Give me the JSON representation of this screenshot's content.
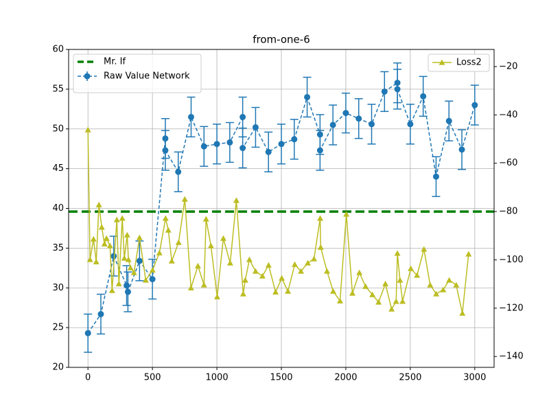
{
  "chart_data": {
    "type": "line",
    "title": "from-one-6",
    "xlim": [
      -150,
      3150
    ],
    "xticks": [
      0,
      500,
      1000,
      1500,
      2000,
      2500,
      3000
    ],
    "ylim": [
      20,
      60
    ],
    "yticks": [
      20,
      25,
      30,
      35,
      40,
      45,
      50,
      55,
      60
    ],
    "y2lim": [
      -144.5,
      -12.9
    ],
    "y2ticks": [
      {
        "value": -140,
        "label": "−140"
      },
      {
        "value": -120,
        "label": "−120"
      },
      {
        "value": -100,
        "label": "−100"
      },
      {
        "value": -80,
        "label": "−80"
      },
      {
        "value": -60,
        "label": "−60"
      },
      {
        "value": -40,
        "label": "−40"
      },
      {
        "value": -20,
        "label": "−20"
      }
    ],
    "grid": true,
    "hlines": [
      {
        "name": "Mr. If",
        "color": "#008000",
        "value": 39.6
      }
    ],
    "legend": "upper left",
    "legend2": "upper right",
    "series": [
      {
        "name": "Raw Value Network",
        "color": "#1f77b4",
        "x": [
          0,
          100,
          200,
          300,
          310,
          400,
          500,
          600,
          600,
          700,
          800,
          900,
          1000,
          1100,
          1200,
          1200,
          1300,
          1400,
          1500,
          1600,
          1700,
          1800,
          1800,
          1900,
          2000,
          2100,
          2200,
          2300,
          2400,
          2400,
          2500,
          2600,
          2700,
          2800,
          2900,
          3000
        ],
        "values": [
          24.3,
          26.7,
          34.0,
          30.3,
          29.5,
          33.4,
          31.1,
          48.8,
          47.3,
          44.6,
          51.5,
          47.8,
          48.1,
          48.3,
          51.5,
          47.6,
          50.2,
          47.1,
          48.1,
          48.7,
          54.0,
          49.3,
          47.3,
          50.5,
          52.0,
          51.3,
          50.6,
          54.7,
          55.8,
          55.0,
          50.6,
          54.1,
          44.0,
          51.0,
          47.4,
          53.0
        ],
        "errors": [
          2.4,
          2.5,
          2.5,
          2.5,
          2.5,
          2.5,
          2.5,
          2.5,
          2.5,
          2.5,
          2.5,
          2.5,
          2.5,
          2.5,
          2.5,
          2.5,
          2.5,
          2.5,
          2.5,
          2.5,
          2.5,
          2.5,
          2.5,
          2.5,
          2.5,
          2.5,
          2.5,
          2.5,
          2.5,
          2.5,
          2.5,
          2.5,
          2.5,
          2.5,
          2.5,
          2.5
        ]
      },
      {
        "name": "Loss2",
        "color": "#bcbd22",
        "axis": "y2",
        "x": [
          0,
          16,
          43,
          64,
          85,
          107,
          128,
          144,
          171,
          187,
          224,
          240,
          266,
          282,
          304,
          314,
          330,
          357,
          400,
          448,
          501,
          554,
          602,
          623,
          650,
          703,
          751,
          799,
          853,
          900,
          916,
          954,
          1002,
          1050,
          1103,
          1151,
          1204,
          1220,
          1252,
          1300,
          1353,
          1401,
          1455,
          1503,
          1551,
          1604,
          1652,
          1705,
          1753,
          1801,
          1805,
          1854,
          1902,
          1955,
          2004,
          2051,
          2105,
          2153,
          2206,
          2254,
          2307,
          2355,
          2390,
          2400,
          2420,
          2440,
          2504,
          2552,
          2606,
          2654,
          2701,
          2755,
          2802,
          2856,
          2904,
          2952
        ],
        "values": [
          -46.2,
          -99.9,
          -91.4,
          -100.8,
          -77.2,
          -86.5,
          -93.4,
          -91.1,
          -94.2,
          -112.7,
          -83.4,
          -109.9,
          -82.8,
          -99.3,
          -89.7,
          -99.9,
          -103.3,
          -105.3,
          -90.8,
          -108.4,
          -104.2,
          -97.1,
          -82.8,
          -87.7,
          -100.5,
          -92.8,
          -74.9,
          -111.6,
          -102.5,
          -110.4,
          -83.1,
          -94.2,
          -115.3,
          -91.1,
          -101.3,
          -75.4,
          -114.1,
          -108.4,
          -99.9,
          -104.7,
          -106.7,
          -102.2,
          -113.3,
          -107.6,
          -113.0,
          -101.9,
          -104.7,
          -101.3,
          -99.6,
          -82.8,
          -94.8,
          -104.7,
          -113.0,
          -117.0,
          -81.1,
          -113.8,
          -105.3,
          -111.0,
          -114.4,
          -117.5,
          -109.9,
          -120.4,
          -117.2,
          -97.3,
          -108.4,
          -117.2,
          -103.6,
          -106.4,
          -95.6,
          -110.4,
          -114.1,
          -112.4,
          -108.4,
          -110.4,
          -122.1,
          -97.6
        ]
      }
    ]
  }
}
